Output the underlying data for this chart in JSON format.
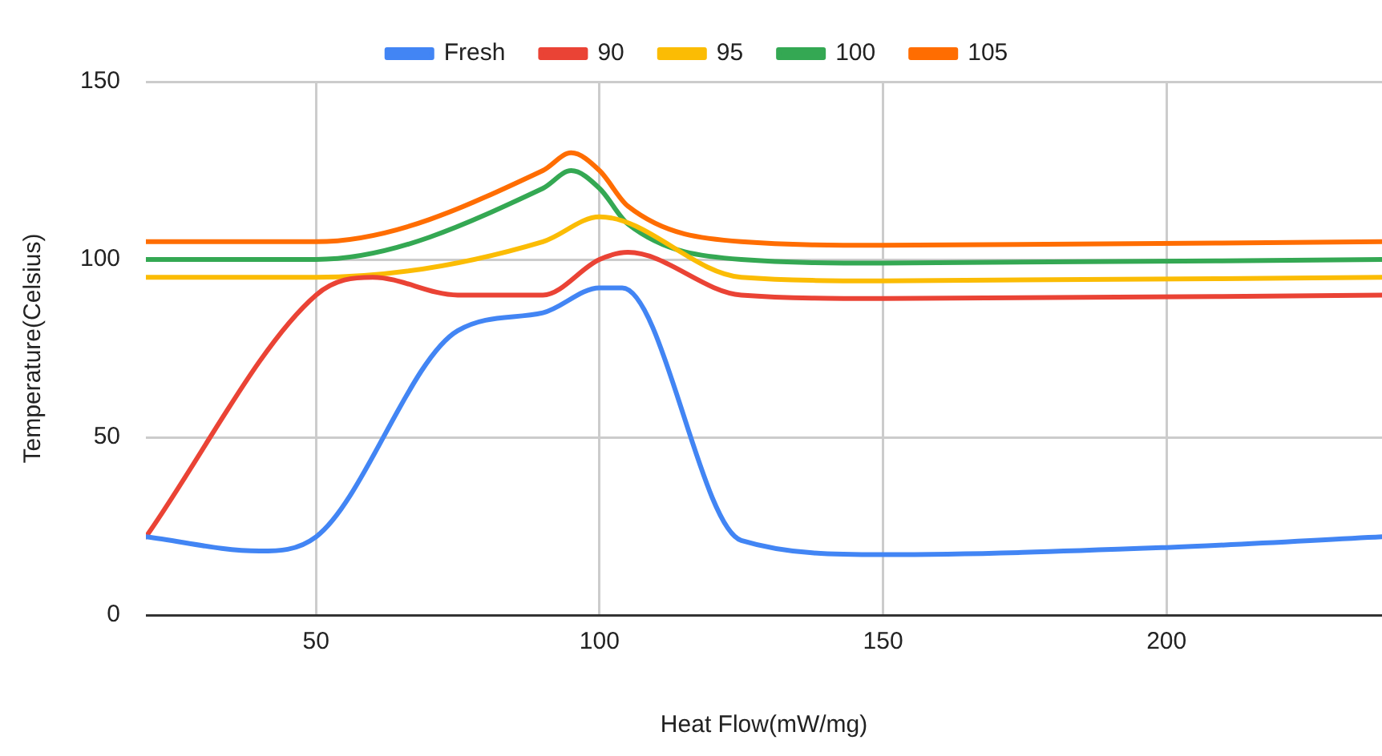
{
  "chart_data": {
    "type": "line",
    "xlabel": "Heat Flow(mW/mg)",
    "ylabel": "Temperature(Celsius)",
    "xlim": [
      20,
      238
    ],
    "xticks": [
      50,
      100,
      150,
      200
    ],
    "ylim": [
      0,
      150
    ],
    "yticks": [
      0,
      50,
      100,
      150
    ],
    "grid": true,
    "legend": "top",
    "marker": "none",
    "line_style": "solid",
    "series": [
      {
        "name": "Fresh",
        "color": "#4285f4",
        "x": [
          20,
          40,
          50,
          75,
          90,
          100,
          104,
          125,
          150,
          200,
          238
        ],
        "values": [
          22,
          18,
          22,
          80,
          85,
          92,
          92,
          21,
          17,
          19,
          22
        ]
      },
      {
        "name": "90",
        "color": "#ea4335",
        "x": [
          20,
          50,
          60,
          75,
          90,
          100,
          105,
          125,
          150,
          238
        ],
        "values": [
          22,
          90,
          95,
          90,
          90,
          100,
          102,
          90,
          89,
          90
        ]
      },
      {
        "name": "95",
        "color": "#fbbc04",
        "x": [
          20,
          50,
          90,
          100,
          125,
          150,
          238
        ],
        "values": [
          95,
          95,
          105,
          112,
          95,
          94,
          95
        ]
      },
      {
        "name": "100",
        "color": "#34a853",
        "x": [
          20,
          50,
          90,
          95,
          100,
          105,
          125,
          150,
          238
        ],
        "values": [
          100,
          100,
          120,
          125,
          120,
          110,
          100,
          99,
          100
        ]
      },
      {
        "name": "105",
        "color": "#ff6d01",
        "x": [
          20,
          50,
          90,
          95,
          100,
          105,
          125,
          150,
          238
        ],
        "values": [
          105,
          105,
          125,
          130,
          125,
          115,
          105,
          104,
          105
        ]
      }
    ]
  }
}
